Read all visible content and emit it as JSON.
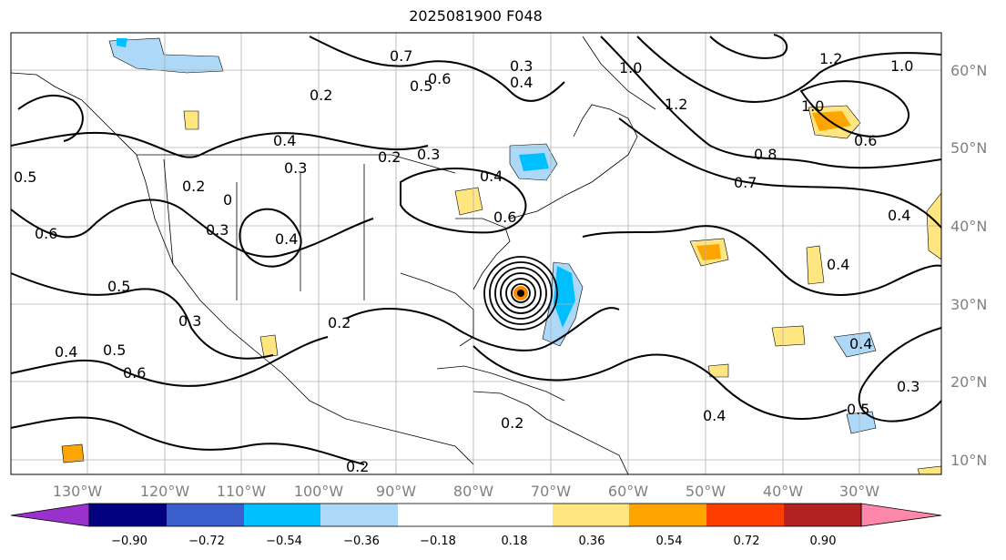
{
  "title": "2025081900 F048",
  "map": {
    "lon_ticks": [
      "130°W",
      "120°W",
      "110°W",
      "100°W",
      "90°W",
      "80°W",
      "70°W",
      "60°W",
      "50°W",
      "40°W",
      "30°W"
    ],
    "lat_ticks": [
      "60°N",
      "50°N",
      "40°N",
      "30°N",
      "20°N",
      "10°N"
    ],
    "contour_labels": [
      {
        "text": "0.7"
      },
      {
        "text": "0.6"
      },
      {
        "text": "0.5"
      },
      {
        "text": "0.3"
      },
      {
        "text": "0.4"
      },
      {
        "text": "0.2"
      },
      {
        "text": "0.4"
      },
      {
        "text": "0.3"
      },
      {
        "text": "0.2"
      },
      {
        "text": "0.3"
      },
      {
        "text": "0.2"
      },
      {
        "text": "0"
      },
      {
        "text": "0.3"
      },
      {
        "text": "0.4"
      },
      {
        "text": "0.4"
      },
      {
        "text": "0.6"
      },
      {
        "text": "0.5"
      },
      {
        "text": "0.6"
      },
      {
        "text": "0.5"
      },
      {
        "text": "0.3"
      },
      {
        "text": "0.4"
      },
      {
        "text": "0.5"
      },
      {
        "text": "0.6"
      },
      {
        "text": "0.2"
      },
      {
        "text": "0.2"
      },
      {
        "text": "0.2"
      },
      {
        "text": "1.0"
      },
      {
        "text": "1.2"
      },
      {
        "text": "1.0"
      },
      {
        "text": "1.2"
      },
      {
        "text": "1.0"
      },
      {
        "text": "0.8"
      },
      {
        "text": "0.7"
      },
      {
        "text": "0.6"
      },
      {
        "text": "0.4"
      },
      {
        "text": "0.4"
      },
      {
        "text": "0.4"
      },
      {
        "text": "0.4"
      },
      {
        "text": "0.5"
      },
      {
        "text": "0.3"
      }
    ],
    "center_symbol_color": "#ff8c00"
  },
  "colorbar": {
    "ticks": [
      "−0.90",
      "−0.72",
      "−0.54",
      "−0.36",
      "−0.18",
      "0.18",
      "0.36",
      "0.54",
      "0.72",
      "0.90"
    ],
    "colors": [
      "#9932cc",
      "#000080",
      "#3a5fcd",
      "#00bfff",
      "#add8f7",
      "#ffffff",
      "#ffe680",
      "#ffa500",
      "#ff3d00",
      "#b22222",
      "#ff88aa"
    ]
  }
}
